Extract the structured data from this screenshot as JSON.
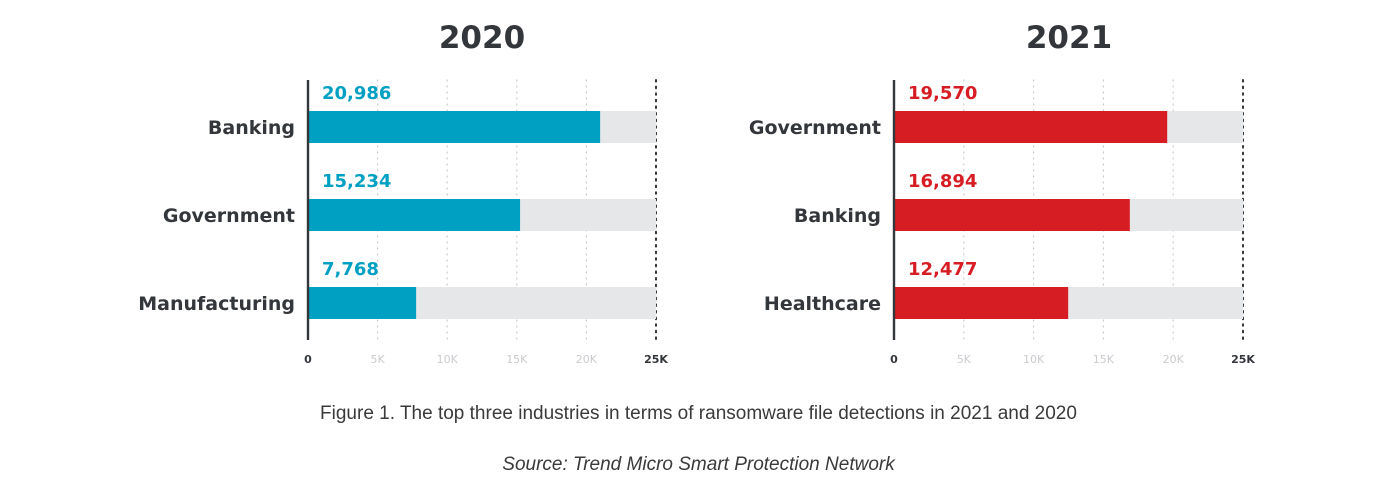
{
  "chart_data": [
    {
      "type": "bar",
      "orientation": "horizontal",
      "title": "2020",
      "categories": [
        "Banking",
        "Government",
        "Manufacturing"
      ],
      "values": [
        20986,
        15234,
        7768
      ],
      "value_labels": [
        "20,986",
        "15,234",
        "7,768"
      ],
      "xlim": [
        0,
        25000
      ],
      "ticks": [
        "0",
        "5K",
        "10K",
        "15K",
        "20K",
        "25K"
      ],
      "bar_color": "#00a0c2",
      "track_color": "#e6e7e8",
      "grid": true
    },
    {
      "type": "bar",
      "orientation": "horizontal",
      "title": "2021",
      "categories": [
        "Government",
        "Banking",
        "Healthcare"
      ],
      "values": [
        19570,
        16894,
        12477
      ],
      "value_labels": [
        "19,570",
        "16,894",
        "12,477"
      ],
      "xlim": [
        0,
        25000
      ],
      "ticks": [
        "0",
        "5K",
        "10K",
        "15K",
        "20K",
        "25K"
      ],
      "bar_color": "#d71d24",
      "track_color": "#e6e7e8",
      "grid": true
    }
  ],
  "figure": {
    "caption": "Figure 1. The top three industries in terms of ransomware file detections in 2021 and 2020",
    "source": "Source: Trend Micro Smart Protection Network"
  }
}
